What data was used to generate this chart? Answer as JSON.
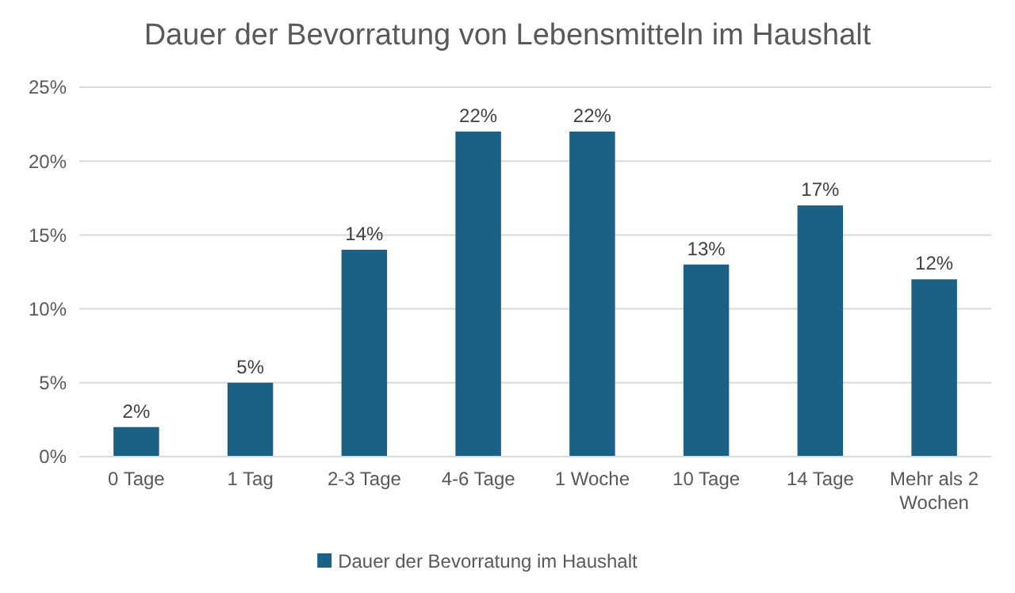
{
  "chart_data": {
    "type": "bar",
    "title": "Dauer der Bevorratung von Lebensmitteln im Haushalt",
    "categories": [
      "0 Tage",
      "1 Tag",
      "2-3 Tage",
      "4-6 Tage",
      "1 Woche",
      "10 Tage",
      "14 Tage",
      "Mehr als 2 Wochen"
    ],
    "series": [
      {
        "name": "Dauer der Bevorratung im Haushalt",
        "color": "#1b6185",
        "values": [
          2,
          5,
          14,
          22,
          22,
          13,
          17,
          12
        ],
        "value_labels": [
          "2%",
          "5%",
          "14%",
          "22%",
          "22%",
          "13%",
          "17%",
          "12%"
        ]
      }
    ],
    "ylim": [
      0,
      25
    ],
    "yticks": [
      {
        "value": 0,
        "label": "0%"
      },
      {
        "value": 5,
        "label": "5%"
      },
      {
        "value": 10,
        "label": "10%"
      },
      {
        "value": 15,
        "label": "15%"
      },
      {
        "value": 20,
        "label": "20%"
      },
      {
        "value": 25,
        "label": "25%"
      }
    ],
    "grid": "y",
    "legend": "bottom"
  }
}
